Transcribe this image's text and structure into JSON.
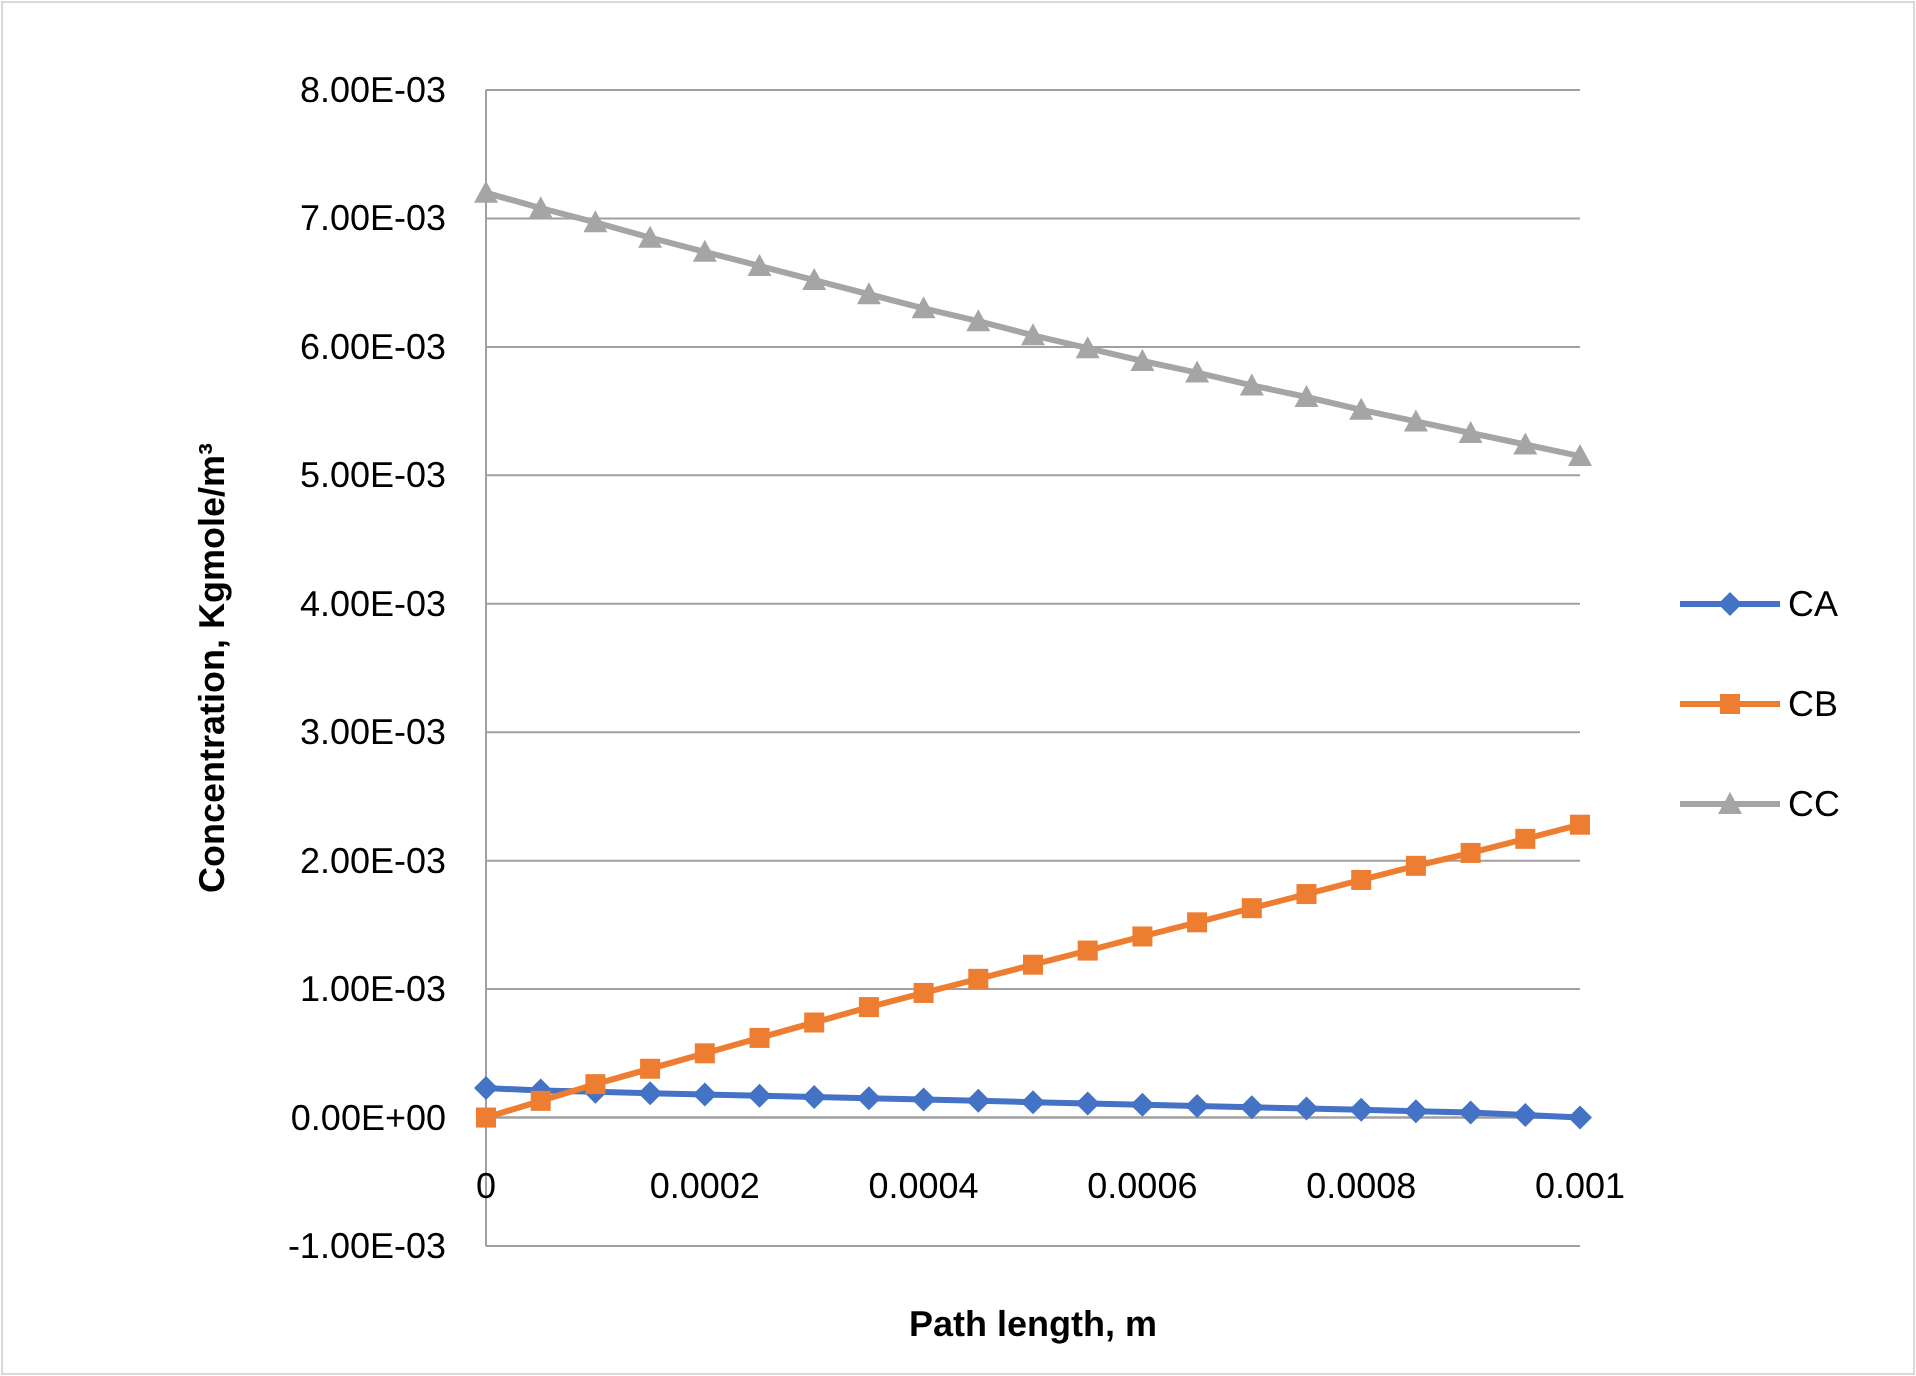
{
  "chart_data": {
    "type": "line",
    "xlabel": "Path length, m",
    "ylabel": "Concentration, Kgmole/m³",
    "x": [
      0,
      5e-05,
      0.0001,
      0.00015,
      0.0002,
      0.00025,
      0.0003,
      0.00035,
      0.0004,
      0.00045,
      0.0005,
      0.00055,
      0.0006,
      0.00065,
      0.0007,
      0.00075,
      0.0008,
      0.00085,
      0.0009,
      0.00095,
      0.001
    ],
    "series": [
      {
        "name": "CA",
        "color": "#4472c4",
        "marker": "diamond",
        "values": [
          0.00023,
          0.00021,
          0.0002,
          0.00019,
          0.00018,
          0.00017,
          0.00016,
          0.00015,
          0.00014,
          0.00013,
          0.00012,
          0.00011,
          0.0001,
          9e-05,
          8e-05,
          7e-05,
          6e-05,
          5e-05,
          4e-05,
          2e-05,
          0
        ]
      },
      {
        "name": "CB",
        "color": "#ed7d31",
        "marker": "square",
        "values": [
          0,
          0.00013,
          0.00026,
          0.00038,
          0.0005,
          0.00062,
          0.00074,
          0.00086,
          0.00097,
          0.00108,
          0.00119,
          0.0013,
          0.00141,
          0.00152,
          0.00163,
          0.00174,
          0.00185,
          0.00196,
          0.00206,
          0.00217,
          0.00228
        ]
      },
      {
        "name": "CC",
        "color": "#a5a5a5",
        "marker": "triangle",
        "values": [
          0.0072,
          0.00708,
          0.00697,
          0.00685,
          0.00674,
          0.00663,
          0.00652,
          0.00641,
          0.0063,
          0.0062,
          0.00609,
          0.00599,
          0.00589,
          0.0058,
          0.0057,
          0.00561,
          0.00551,
          0.00542,
          0.00533,
          0.00524,
          0.00515
        ]
      }
    ],
    "xlim": [
      0,
      0.001
    ],
    "xticks": [
      0,
      0.0002,
      0.0004,
      0.0006,
      0.0008,
      0.001
    ],
    "ylim": [
      -0.001,
      0.008
    ],
    "yticks": [
      {
        "value": -0.001,
        "label": "-1.00E-03"
      },
      {
        "value": 0,
        "label": "0.00E+00"
      },
      {
        "value": 0.001,
        "label": "1.00E-03"
      },
      {
        "value": 0.002,
        "label": "2.00E-03"
      },
      {
        "value": 0.003,
        "label": "3.00E-03"
      },
      {
        "value": 0.004,
        "label": "4.00E-03"
      },
      {
        "value": 0.005,
        "label": "5.00E-03"
      },
      {
        "value": 0.006,
        "label": "6.00E-03"
      },
      {
        "value": 0.007,
        "label": "7.00E-03"
      },
      {
        "value": 0.008,
        "label": "8.00E-03"
      }
    ],
    "grid": "y",
    "legend": "right",
    "line_style": "solid"
  }
}
